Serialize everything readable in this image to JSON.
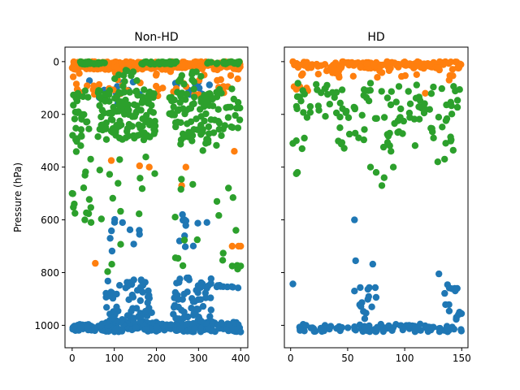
{
  "chart_data": [
    {
      "type": "scatter",
      "title": "Non-HD",
      "xlabel": "",
      "ylabel": "Pressure (hPa)",
      "xlim": [
        -17,
        417
      ],
      "ylim": [
        1085,
        -55
      ],
      "y_inverted": true,
      "xticks": [
        0,
        100,
        200,
        300,
        400
      ],
      "yticks": [
        0,
        200,
        400,
        600,
        800,
        1000
      ],
      "series": [
        {
          "color": "#1f77b4",
          "clusters": [
            {
              "x": [
                0,
                55
              ],
              "y": [
                995,
                1020
              ],
              "n": 38
            },
            {
              "x": [
                60,
                200
              ],
              "y": [
                985,
                1025
              ],
              "n": 80
            },
            {
              "x": [
                200,
                250
              ],
              "y": [
                995,
                1020
              ],
              "n": 30
            },
            {
              "x": [
                250,
                400
              ],
              "y": [
                985,
                1025
              ],
              "n": 90
            },
            {
              "x": [
                80,
                190
              ],
              "y": [
                820,
                985
              ],
              "n": 60
            },
            {
              "x": [
                240,
                330
              ],
              "y": [
                820,
                985
              ],
              "n": 55
            },
            {
              "x": [
                340,
                400
              ],
              "y": [
                840,
                860
              ],
              "n": 10
            },
            {
              "x": [
                90,
                160
              ],
              "y": [
                580,
                720
              ],
              "n": 10
            },
            {
              "x": [
                240,
                300
              ],
              "y": [
                580,
                720
              ],
              "n": 8
            },
            {
              "x": [
                30,
                170
              ],
              "y": [
                60,
                180
              ],
              "n": 10
            },
            {
              "x": [
                240,
                330
              ],
              "y": [
                60,
                140
              ],
              "n": 10
            }
          ],
          "points": [
            [
              320,
              610
            ],
            [
              262,
              580
            ],
            [
              255,
              680
            ]
          ]
        },
        {
          "color": "#ff7f0e",
          "clusters": [
            {
              "x": [
                0,
                400
              ],
              "y": [
                0,
                30
              ],
              "n": 300
            },
            {
              "x": [
                0,
                400
              ],
              "y": [
                30,
                130
              ],
              "n": 40
            }
          ],
          "points": [
            [
              10,
              85
            ],
            [
              12,
              105
            ],
            [
              55,
              765
            ],
            [
              93,
              375
            ],
            [
              160,
              395
            ],
            [
              183,
              400
            ],
            [
              260,
              470
            ],
            [
              270,
              400
            ],
            [
              380,
              700
            ],
            [
              395,
              700
            ],
            [
              400,
              700
            ],
            [
              385,
              340
            ],
            [
              300,
              125
            ],
            [
              215,
              100
            ],
            [
              205,
              105
            ]
          ]
        },
        {
          "color": "#2ca02c",
          "clusters": [
            {
              "x": [
                15,
                80
              ],
              "y": [
                0,
                10
              ],
              "n": 25
            },
            {
              "x": [
                165,
                255
              ],
              "y": [
                0,
                10
              ],
              "n": 40
            },
            {
              "x": [
                320,
                400
              ],
              "y": [
                0,
                10
              ],
              "n": 20
            },
            {
              "x": [
                0,
                40
              ],
              "y": [
                100,
                340
              ],
              "n": 30
            },
            {
              "x": [
                60,
                200
              ],
              "y": [
                100,
                300
              ],
              "n": 130
            },
            {
              "x": [
                230,
                360
              ],
              "y": [
                100,
                320
              ],
              "n": 90
            },
            {
              "x": [
                360,
                400
              ],
              "y": [
                100,
                280
              ],
              "n": 15
            },
            {
              "x": [
                0,
                80
              ],
              "y": [
                340,
                620
              ],
              "n": 14
            },
            {
              "x": [
                80,
                400
              ],
              "y": [
                320,
                800
              ],
              "n": 32
            },
            {
              "x": [
                80,
                160
              ],
              "y": [
                30,
                100
              ],
              "n": 10
            },
            {
              "x": [
                250,
                320
              ],
              "y": [
                30,
                100
              ],
              "n": 10
            }
          ],
          "points": [
            [
              0,
              500
            ],
            [
              5,
              540
            ],
            [
              30,
              600
            ],
            [
              45,
              610
            ],
            [
              120,
              160
            ],
            [
              380,
              775
            ],
            [
              395,
              775
            ],
            [
              400,
              775
            ]
          ]
        }
      ]
    },
    {
      "type": "scatter",
      "title": "HD",
      "xlabel": "",
      "ylabel": "",
      "xlim": [
        -5.5,
        155.5
      ],
      "ylim": [
        1085,
        -55
      ],
      "y_inverted": true,
      "xticks": [
        0,
        50,
        100,
        150
      ],
      "yticks": [
        0,
        200,
        400,
        600,
        800,
        1000
      ],
      "series": [
        {
          "color": "#1f77b4",
          "clusters": [
            {
              "x": [
                3,
                150
              ],
              "y": [
                995,
                1025
              ],
              "n": 95
            },
            {
              "x": [
                60,
                75
              ],
              "y": [
                850,
                980
              ],
              "n": 14
            },
            {
              "x": [
                130,
                150
              ],
              "y": [
                840,
                980
              ],
              "n": 12
            }
          ],
          "points": [
            [
              2,
              843
            ],
            [
              56,
              600
            ],
            [
              57,
              755
            ],
            [
              72,
              768
            ],
            [
              56,
              870
            ],
            [
              130,
              805
            ],
            [
              146,
              860
            ],
            [
              147,
              960
            ],
            [
              148,
              950
            ]
          ]
        },
        {
          "color": "#ff7f0e",
          "clusters": [
            {
              "x": [
                3,
                150
              ],
              "y": [
                0,
                25
              ],
              "n": 130
            },
            {
              "x": [
                3,
                150
              ],
              "y": [
                25,
                60
              ],
              "n": 25
            }
          ],
          "points": [
            [
              2,
              0
            ],
            [
              3,
              95
            ],
            [
              5,
              105
            ],
            [
              8,
              95
            ],
            [
              14,
              100
            ],
            [
              15,
              110
            ],
            [
              139,
              70
            ],
            [
              118,
              120
            ]
          ]
        },
        {
          "color": "#2ca02c",
          "clusters": [
            {
              "x": [
                5,
                150
              ],
              "y": [
                80,
                230
              ],
              "n": 85
            },
            {
              "x": [
                40,
                110
              ],
              "y": [
                200,
                330
              ],
              "n": 25
            },
            {
              "x": [
                120,
                150
              ],
              "y": [
                200,
                340
              ],
              "n": 12
            }
          ],
          "points": [
            [
              2,
              310
            ],
            [
              5,
              300
            ],
            [
              5,
              425
            ],
            [
              6,
              420
            ],
            [
              10,
              330
            ],
            [
              12,
              290
            ],
            [
              70,
              400
            ],
            [
              75,
              420
            ],
            [
              80,
              470
            ],
            [
              82,
              440
            ],
            [
              88,
              340
            ],
            [
              90,
              400
            ],
            [
              129,
              380
            ],
            [
              135,
              370
            ]
          ]
        }
      ]
    }
  ]
}
